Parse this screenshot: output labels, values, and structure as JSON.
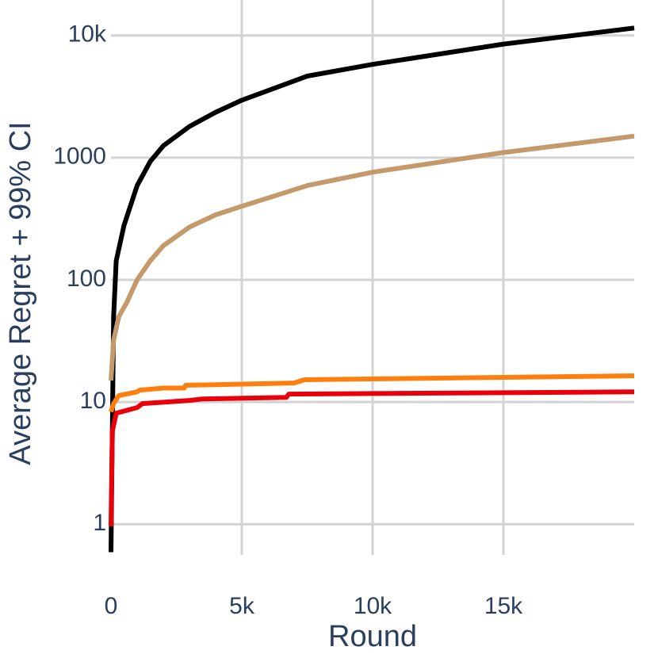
{
  "chart_data": {
    "type": "line",
    "x_label": "Round",
    "y_label": "Average Regret + 99% CI",
    "xlim": [
      0,
      20000
    ],
    "xticks": [
      0,
      {
        "value": 5000,
        "label": "5k"
      },
      {
        "value": 10000,
        "label": "10k"
      },
      {
        "value": 15000,
        "label": "15k"
      }
    ],
    "ylim": [
      0.56,
      19500
    ],
    "yticks": [
      1,
      10,
      100,
      1000,
      {
        "value": 10000,
        "label": "10k"
      }
    ],
    "log_y": true,
    "grid": true,
    "series": [
      {
        "color": "#000000",
        "x": [
          0,
          100,
          200,
          500,
          1000,
          1500,
          2000,
          3000,
          4000,
          5000,
          7500,
          10000,
          15000,
          20000
        ],
        "values": [
          0.59,
          50,
          143,
          280,
          590,
          930,
          1250,
          1800,
          2350,
          2950,
          4650,
          5800,
          8500,
          11500
        ]
      },
      {
        "color": "#c49a6c",
        "x": [
          0,
          100,
          300,
          600,
          1000,
          1500,
          2000,
          3000,
          4000,
          5000,
          7500,
          10000,
          15000,
          20000
        ],
        "values": [
          15,
          32,
          50,
          65,
          100,
          143,
          190,
          270,
          340,
          400,
          590,
          760,
          1100,
          1500
        ]
      },
      {
        "color": "#ff7f0e",
        "x": [
          0,
          100,
          300,
          1000,
          1100,
          2000,
          2800,
          2850,
          7000,
          7400,
          20000
        ],
        "values": [
          8.3,
          9.7,
          11.3,
          12.1,
          12.5,
          13,
          13,
          13.7,
          14.3,
          15.2,
          16.4
        ]
      },
      {
        "color": "#e8000b",
        "x": [
          0,
          50,
          200,
          1000,
          1200,
          3000,
          3500,
          6700,
          6800,
          20000
        ],
        "values": [
          0.96,
          5.75,
          8.1,
          9,
          9.7,
          10.3,
          10.6,
          10.9,
          11.6,
          12.1
        ]
      }
    ]
  }
}
